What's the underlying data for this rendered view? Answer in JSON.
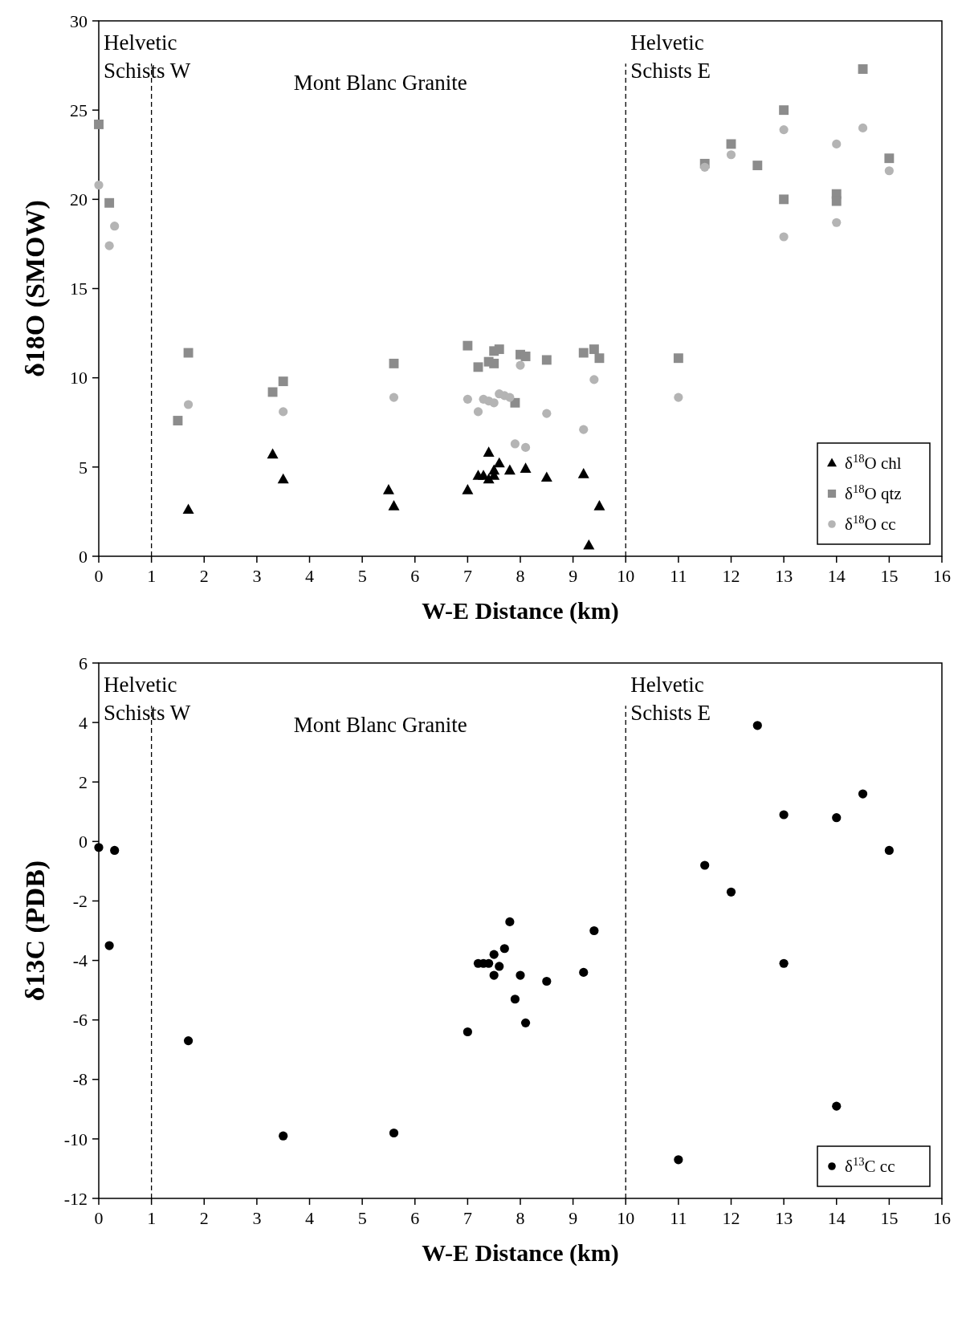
{
  "chart_data": [
    {
      "type": "scatter",
      "ylabel": "δ18O (SMOW)",
      "xlabel": "W-E Distance (km)",
      "xlim": [
        0,
        16
      ],
      "ylim": [
        0,
        30
      ],
      "xticks": [
        0,
        1,
        2,
        3,
        4,
        5,
        6,
        7,
        8,
        9,
        10,
        11,
        12,
        13,
        14,
        15,
        16
      ],
      "yticks": [
        0,
        5,
        10,
        15,
        20,
        25,
        30
      ],
      "grid": false,
      "legend": "bottom right",
      "ref_lines": [
        {
          "axis": "x",
          "value": 1,
          "line_style": "dashed"
        },
        {
          "axis": "x",
          "value": 10,
          "line_style": "dashed"
        }
      ],
      "annotations": [
        "Helvetic\nSchists W",
        "Mont Blanc Granite",
        "Helvetic\nSchists E"
      ],
      "series": [
        {
          "name": "δ$^{18}$O chl",
          "color": "#000000",
          "marker": "triangle",
          "x": [
            1.7,
            3.3,
            3.5,
            5.5,
            5.6,
            7.0,
            7.2,
            7.3,
            7.4,
            7.4,
            7.5,
            7.5,
            7.6,
            7.8,
            8.1,
            8.5,
            9.2,
            9.3,
            9.5
          ],
          "values": [
            2.6,
            5.7,
            4.3,
            3.7,
            2.8,
            3.7,
            4.5,
            4.5,
            5.8,
            4.3,
            4.5,
            4.8,
            5.2,
            4.8,
            4.9,
            4.4,
            4.6,
            0.6,
            2.8
          ]
        },
        {
          "name": "δ$^{18}$O qtz",
          "color": "#8c8c8c",
          "marker": "square",
          "x": [
            0,
            0.2,
            1.5,
            1.7,
            3.3,
            3.5,
            5.6,
            7.0,
            7.2,
            7.4,
            7.5,
            7.5,
            7.6,
            7.9,
            8.0,
            8.1,
            8.5,
            9.2,
            9.4,
            9.5,
            11,
            11.5,
            12,
            12.5,
            13,
            13,
            14,
            14,
            14.5,
            15
          ],
          "values": [
            24.2,
            19.8,
            7.6,
            11.4,
            9.2,
            9.8,
            10.8,
            11.8,
            10.6,
            10.9,
            10.8,
            11.5,
            11.6,
            8.6,
            11.3,
            11.2,
            11.0,
            11.4,
            11.6,
            11.1,
            11.1,
            22.0,
            23.1,
            21.9,
            25.0,
            20.0,
            20.3,
            19.9,
            27.3,
            22.3
          ]
        },
        {
          "name": "δ$^{18}$O cc",
          "color": "#b4b4b4",
          "marker": "circle",
          "x": [
            0,
            0.2,
            0.3,
            1.7,
            3.5,
            5.6,
            7.0,
            7.2,
            7.3,
            7.4,
            7.5,
            7.6,
            7.7,
            7.8,
            7.9,
            8.0,
            8.1,
            8.5,
            9.2,
            9.4,
            11,
            11.5,
            12,
            13,
            13,
            14,
            14,
            14.5,
            15
          ],
          "values": [
            20.8,
            17.4,
            18.5,
            8.5,
            8.1,
            8.9,
            8.8,
            8.1,
            8.8,
            8.7,
            8.6,
            9.1,
            9.0,
            8.9,
            6.3,
            10.7,
            6.1,
            8.0,
            7.1,
            9.9,
            8.9,
            21.8,
            22.5,
            23.9,
            17.9,
            23.1,
            18.7,
            24.0,
            21.6
          ]
        }
      ]
    },
    {
      "type": "scatter",
      "ylabel": "δ13C (PDB)",
      "xlabel": "W-E Distance (km)",
      "xlim": [
        0,
        16
      ],
      "ylim": [
        -12,
        6
      ],
      "xticks": [
        0,
        1,
        2,
        3,
        4,
        5,
        6,
        7,
        8,
        9,
        10,
        11,
        12,
        13,
        14,
        15,
        16
      ],
      "yticks": [
        -12,
        -10,
        -8,
        -6,
        -4,
        -2,
        0,
        2,
        4,
        6
      ],
      "grid": false,
      "legend": "bottom right",
      "ref_lines": [
        {
          "axis": "x",
          "value": 1,
          "line_style": "dashed"
        },
        {
          "axis": "x",
          "value": 10,
          "line_style": "dashed"
        }
      ],
      "annotations": [
        "Helvetic\nSchists W",
        "Mont Blanc Granite",
        "Helvetic\nSchists E"
      ],
      "series": [
        {
          "name": "δ$^{13}$C cc",
          "color": "#000000",
          "marker": "circle",
          "x": [
            0,
            0.2,
            0.3,
            1.7,
            3.5,
            5.6,
            7.0,
            7.2,
            7.3,
            7.4,
            7.5,
            7.5,
            7.6,
            7.7,
            7.8,
            7.9,
            8.0,
            8.1,
            8.5,
            9.2,
            9.4,
            11,
            11.5,
            12,
            12.5,
            13,
            13,
            14,
            14,
            14.5,
            15
          ],
          "values": [
            -0.2,
            -3.5,
            -0.3,
            -6.7,
            -9.9,
            -9.8,
            -6.4,
            -4.1,
            -4.1,
            -4.1,
            -3.8,
            -4.5,
            -4.2,
            -3.6,
            -2.7,
            -5.3,
            -4.5,
            -6.1,
            -4.7,
            -4.4,
            -3.0,
            -10.7,
            -0.8,
            -1.7,
            3.9,
            0.9,
            -4.1,
            0.8,
            -8.9,
            1.6,
            -0.3
          ]
        }
      ]
    }
  ]
}
